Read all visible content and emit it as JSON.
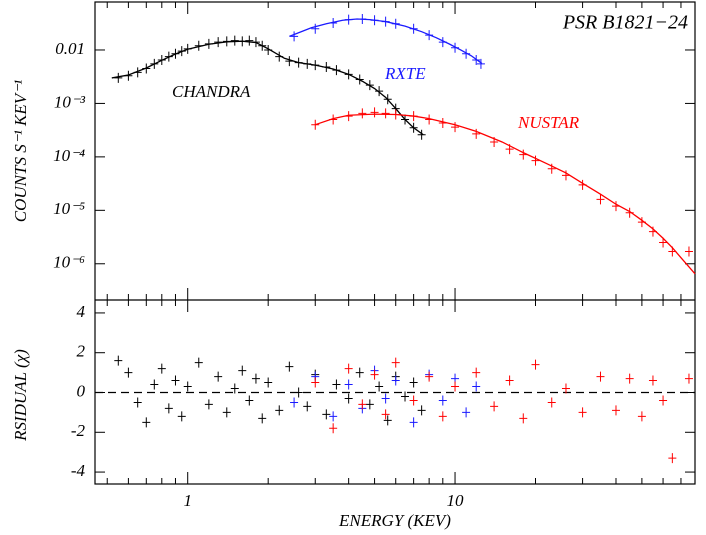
{
  "chart_data": [
    {
      "type": "scatter",
      "title": "PSR B1821−24",
      "y_label": "COUNTS S⁻¹ KEV⁻¹",
      "log_x": true,
      "log_y": true,
      "xlim": [
        0.45,
        79
      ],
      "ylim": [
        2.1e-07,
        0.079
      ],
      "yticks": [
        {
          "value": 0.01,
          "label": "0.01"
        },
        {
          "value": 0.001,
          "label": "10⁻³"
        },
        {
          "value": 0.0001,
          "label": "10⁻⁴"
        },
        {
          "value": 1e-05,
          "label": "10⁻⁵"
        },
        {
          "value": 1e-06,
          "label": "10⁻⁶"
        }
      ],
      "series": [
        {
          "name": "CHANDRA",
          "color": "#000000",
          "x": [
            0.55,
            0.6,
            0.65,
            0.7,
            0.75,
            0.8,
            0.85,
            0.9,
            0.95,
            1.0,
            1.1,
            1.2,
            1.3,
            1.4,
            1.5,
            1.6,
            1.7,
            1.8,
            1.9,
            2.0,
            2.2,
            2.4,
            2.6,
            2.8,
            3.0,
            3.3,
            3.6,
            4.0,
            4.4,
            4.8,
            5.2,
            5.6,
            6.0,
            6.5,
            7.0,
            7.5
          ],
          "values": [
            0.003,
            0.0033,
            0.0038,
            0.0045,
            0.0055,
            0.0065,
            0.0075,
            0.0085,
            0.0095,
            0.0105,
            0.012,
            0.013,
            0.014,
            0.0145,
            0.015,
            0.0145,
            0.015,
            0.014,
            0.012,
            0.01,
            0.0075,
            0.0062,
            0.0058,
            0.0055,
            0.0052,
            0.0048,
            0.0042,
            0.0035,
            0.0028,
            0.0022,
            0.0017,
            0.0012,
            0.0008,
            0.0005,
            0.00035,
            0.00026
          ],
          "model": {
            "x": [
              0.52,
              0.6,
              0.7,
              0.8,
              0.9,
              1.0,
              1.2,
              1.4,
              1.6,
              1.8,
              2.0,
              2.3,
              2.6,
              3.0,
              3.5,
              4.0,
              4.5,
              5.0,
              5.5,
              6.0,
              6.5,
              7.0,
              7.6
            ],
            "values": [
              0.003,
              0.0034,
              0.0046,
              0.0064,
              0.0084,
              0.0103,
              0.0128,
              0.0142,
              0.0146,
              0.0138,
              0.0105,
              0.007,
              0.0058,
              0.0052,
              0.0044,
              0.0035,
              0.0026,
              0.0019,
              0.0013,
              0.0008,
              0.0005,
              0.00035,
              0.00026
            ]
          }
        },
        {
          "name": "RXTE",
          "color": "#1a1aff",
          "x": [
            2.5,
            3.0,
            3.5,
            4.0,
            4.5,
            5.0,
            5.5,
            6.0,
            7.0,
            8.0,
            9.0,
            10.0,
            11.0,
            12.0,
            12.5
          ],
          "values": [
            0.018,
            0.025,
            0.032,
            0.037,
            0.038,
            0.036,
            0.034,
            0.031,
            0.025,
            0.019,
            0.014,
            0.011,
            0.0085,
            0.0065,
            0.0055
          ],
          "model": {
            "x": [
              2.4,
              2.9,
              3.3,
              3.8,
              4.3,
              4.8,
              5.5,
              6.5,
              7.5,
              8.5,
              9.5,
              10.5,
              11.5,
              12.6
            ],
            "values": [
              0.018,
              0.026,
              0.031,
              0.036,
              0.038,
              0.037,
              0.034,
              0.028,
              0.022,
              0.017,
              0.013,
              0.01,
              0.0078,
              0.0056
            ]
          }
        },
        {
          "name": "NUSTAR",
          "color": "#ff0000",
          "x": [
            3,
            3.5,
            4,
            4.5,
            5,
            5.5,
            6,
            7,
            8,
            9,
            10,
            12,
            14,
            16,
            18,
            20,
            23,
            26,
            30,
            35,
            40,
            45,
            50,
            55,
            60,
            65,
            75
          ],
          "values": [
            0.0004,
            0.0005,
            0.00058,
            0.00065,
            0.00068,
            0.00065,
            0.00062,
            0.00058,
            0.0005,
            0.00043,
            0.00036,
            0.00027,
            0.00019,
            0.00014,
            0.00011,
            8.5e-05,
            6e-05,
            4.5e-05,
            3e-05,
            1.6e-05,
            1.2e-05,
            9e-06,
            6e-06,
            4e-06,
            2.5e-06,
            1.7e-06,
            1.7e-06
          ],
          "model": {
            "x": [
              3,
              3.5,
              4,
              5,
              6,
              7,
              8,
              10,
              12,
              15,
              18,
              22,
              26,
              30,
              35,
              40,
              45,
              50,
              55,
              60,
              65,
              70,
              79
            ],
            "values": [
              0.0004,
              0.00052,
              0.0006,
              0.00063,
              0.00062,
              0.00058,
              0.00052,
              0.0004,
              0.0003,
              0.00019,
              0.00012,
              7.5e-05,
              5e-05,
              3.2e-05,
              2e-05,
              1.3e-05,
              9.5e-06,
              6.5e-06,
              4.5e-06,
              3e-06,
              2e-06,
              1.3e-06,
              6.5e-07
            ]
          }
        }
      ]
    },
    {
      "type": "scatter",
      "x_label": "ENERGY (KEV)",
      "y_label": "RSIDUAL (χ)",
      "log_x": true,
      "xlim": [
        0.45,
        79
      ],
      "ylim": [
        -4.6,
        4.65
      ],
      "hline": 0,
      "xticks": [
        1,
        10
      ],
      "xminorticks": [
        0.5,
        0.6,
        0.7,
        0.8,
        0.9,
        2,
        3,
        4,
        5,
        6,
        7,
        8,
        9,
        20,
        30,
        40,
        50,
        60,
        70
      ],
      "yticks": [
        4,
        2,
        0,
        -2,
        -4
      ],
      "series": [
        {
          "color": "#000000",
          "x": [
            0.55,
            0.6,
            0.65,
            0.7,
            0.75,
            0.8,
            0.85,
            0.9,
            0.95,
            1.0,
            1.1,
            1.2,
            1.3,
            1.4,
            1.5,
            1.6,
            1.7,
            1.8,
            1.9,
            2.0,
            2.2,
            2.4,
            2.6,
            2.8,
            3.0,
            3.3,
            3.6,
            4.0,
            4.4,
            4.8,
            5.2,
            5.6,
            6.0,
            6.5,
            7.0,
            7.5
          ],
          "values": [
            1.6,
            1.0,
            -0.5,
            -1.5,
            0.4,
            1.2,
            -0.8,
            0.6,
            -1.2,
            0.3,
            1.5,
            -0.6,
            0.8,
            -1.0,
            0.2,
            1.1,
            -0.4,
            0.7,
            -1.3,
            0.5,
            -0.9,
            1.3,
            0,
            -0.7,
            0.9,
            -1.1,
            0.4,
            -0.3,
            1.0,
            -0.6,
            0.3,
            -1.4,
            0.8,
            -0.2,
            0.5,
            -0.9
          ]
        },
        {
          "color": "#1a1aff",
          "x": [
            2.5,
            3,
            3.5,
            4,
            4.5,
            5,
            5.5,
            6,
            7,
            8,
            9,
            10,
            11,
            12
          ],
          "values": [
            -0.5,
            0.8,
            -1.2,
            0.4,
            -0.8,
            1.1,
            -0.3,
            0.6,
            -1.5,
            0.9,
            -0.4,
            0.7,
            -1.0,
            0.3
          ]
        },
        {
          "color": "#ff0000",
          "x": [
            3,
            3.5,
            4,
            4.5,
            5,
            5.5,
            6,
            7,
            8,
            9,
            10,
            12,
            14,
            16,
            18,
            20,
            23,
            26,
            30,
            35,
            40,
            45,
            50,
            55,
            60,
            65,
            75
          ],
          "values": [
            0.5,
            -1.8,
            1.2,
            -0.6,
            0.9,
            -1.1,
            1.5,
            -0.4,
            0.8,
            -1.2,
            0.3,
            1.0,
            -0.7,
            0.6,
            -1.3,
            1.4,
            -0.5,
            0.2,
            -1.0,
            0.8,
            -0.9,
            0.7,
            -1.2,
            0.6,
            -0.4,
            -3.3,
            0.7
          ]
        }
      ]
    }
  ]
}
